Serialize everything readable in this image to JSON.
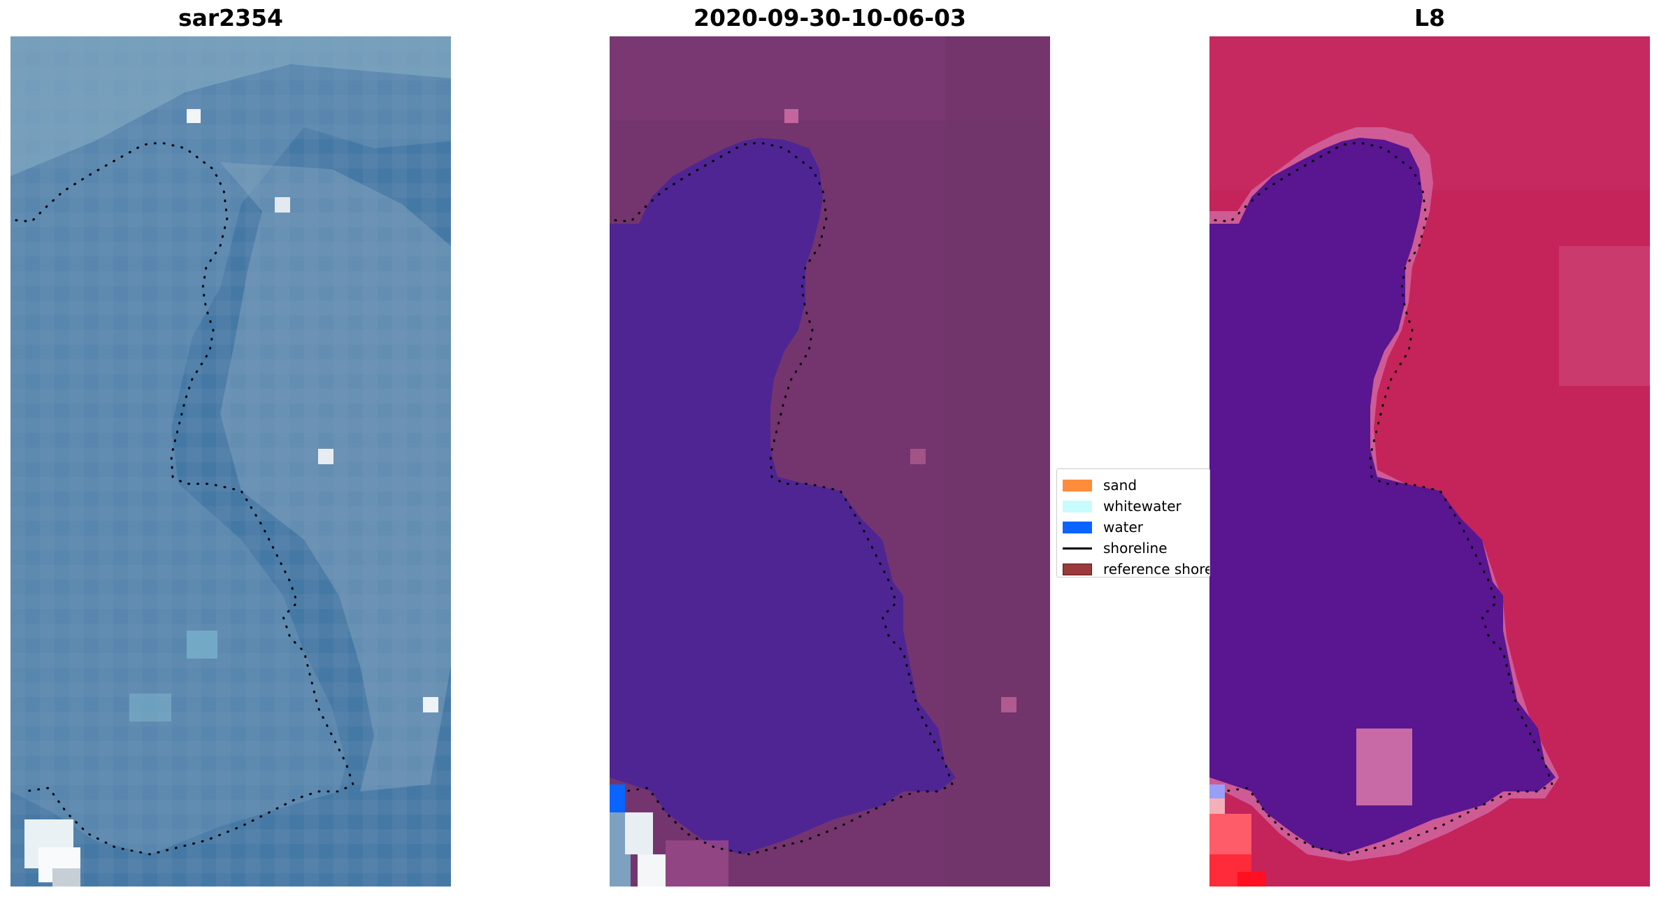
{
  "panels": {
    "left": {
      "title": "sar2354"
    },
    "middle": {
      "title": "2020-09-30-10-06-03"
    },
    "right": {
      "title": "L8"
    }
  },
  "legend": {
    "items": [
      {
        "label": "sand",
        "color": "#ff8c3a"
      },
      {
        "label": "whitewater",
        "color": "#c8fbfb"
      },
      {
        "label": "water",
        "color": "#0a64ff"
      },
      {
        "label": "shoreline",
        "color": "#000000"
      },
      {
        "label": "reference shoreline",
        "color": "#9a3a3a"
      }
    ]
  },
  "colors": {
    "sar_water": "#4d7fa6",
    "classified_water": "#4f2593",
    "classified_land": "#74356f",
    "ndwi_water": "#5a1590",
    "ndwi_land": "#c4245a"
  }
}
